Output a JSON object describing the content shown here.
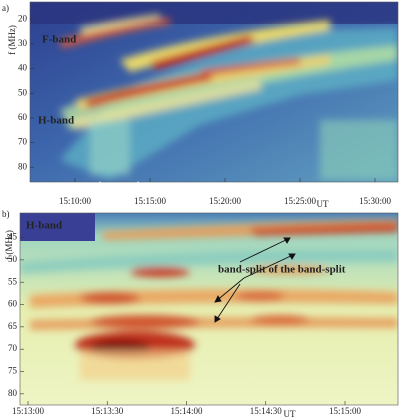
{
  "chart_data": [
    {
      "type": "spectrogram",
      "label": "a)",
      "y_label": "f (MHz)",
      "x_label": "UT",
      "ylim": [
        13,
        86
      ],
      "yticks": [
        20,
        30,
        40,
        50,
        60,
        70,
        80
      ],
      "xticks": [
        "15:10:00",
        "15:15:00",
        "15:20:00",
        "15:25:00",
        "15:30:00"
      ],
      "annotations": [
        "F-band",
        "H-band"
      ]
    },
    {
      "type": "spectrogram",
      "label": "b)",
      "y_label": "f (MHz)",
      "x_label": "UT",
      "ylim": [
        39.5,
        82.5
      ],
      "yticks": [
        45,
        50,
        55,
        60,
        65,
        70,
        75,
        80
      ],
      "xticks": [
        "15:13:00",
        "15:13:30",
        "15:14:00",
        "15:14:30",
        "15:15:00"
      ],
      "annotations": [
        "H-band",
        "band-split of the band-split"
      ]
    }
  ]
}
